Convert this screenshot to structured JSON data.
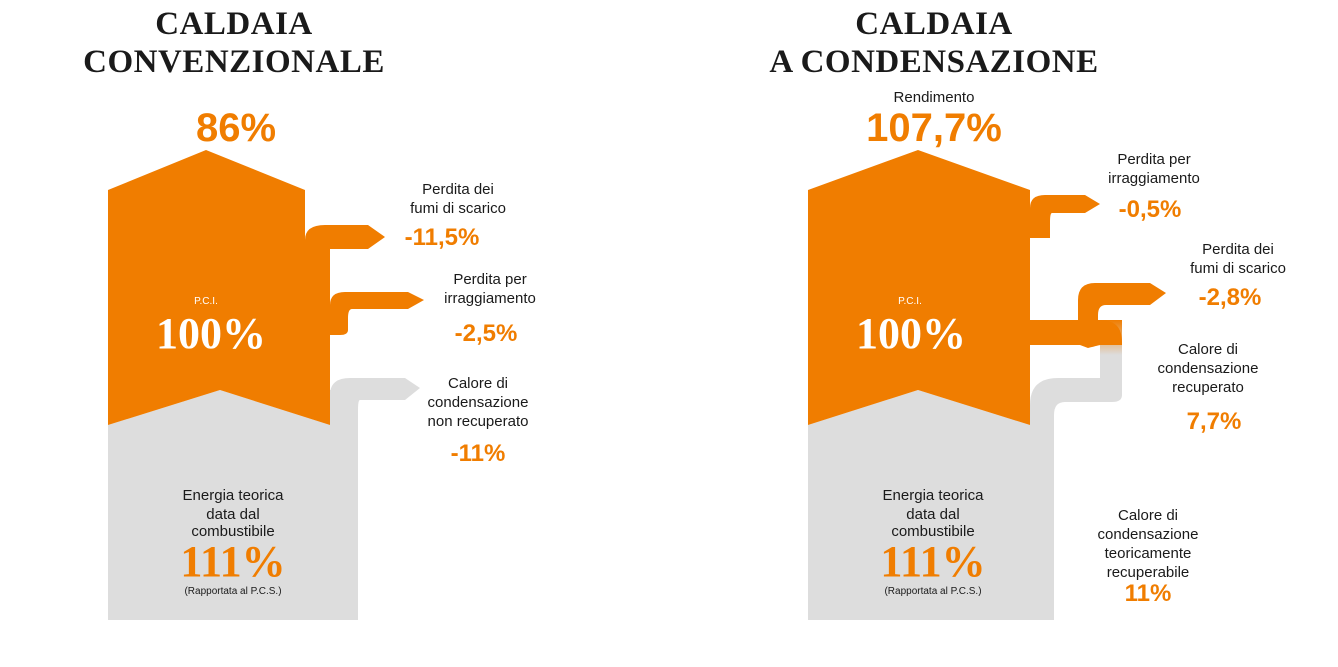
{
  "colors": {
    "orange": "#f07d00",
    "grey": "#dddddd",
    "text": "#1a1a1a"
  },
  "left": {
    "title_line1": "CALDAIA",
    "title_line2": "CONVENZIONALE",
    "efficiency_value": "86%",
    "pci_label": "P.C.I.",
    "pci_value": "100%",
    "losses": [
      {
        "label_line1": "Perdita dei",
        "label_line2": "fumi di scarico",
        "value": "-11,5%"
      },
      {
        "label_line1": "Perdita per",
        "label_line2": "irraggiamento",
        "value": "-2,5%"
      },
      {
        "label_line1": "Calore di",
        "label_line2": "condensazione",
        "label_line3": "non recuperato",
        "value": "-11%"
      }
    ],
    "energy_line1": "Energia teorica",
    "energy_line2": "data dal",
    "energy_line3": "combustibile",
    "energy_value": "111%",
    "energy_note": "(Rapportata al P.C.S.)"
  },
  "right": {
    "title_line1": "CALDAIA",
    "title_line2": "A CONDENSAZIONE",
    "efficiency_label": "Rendimento",
    "efficiency_value": "107,7%",
    "pci_label": "P.C.I.",
    "pci_value": "100%",
    "flows": [
      {
        "label_line1": "Perdita per",
        "label_line2": "irraggiamento",
        "value": "-0,5%"
      },
      {
        "label_line1": "Perdita dei",
        "label_line2": "fumi di scarico",
        "value": "-2,8%"
      },
      {
        "label_line1": "Calore di",
        "label_line2": "condensazione",
        "label_line3": "recuperato",
        "value": "7,7%"
      },
      {
        "label_line1": "Calore di",
        "label_line2": "condensazione",
        "label_line3": "teoricamente",
        "label_line4": "recuperabile",
        "value": "11%"
      }
    ],
    "energy_line1": "Energia teorica",
    "energy_line2": "data dal",
    "energy_line3": "combustibile",
    "energy_value": "111%",
    "energy_note": "(Rapportata al P.C.S.)"
  }
}
